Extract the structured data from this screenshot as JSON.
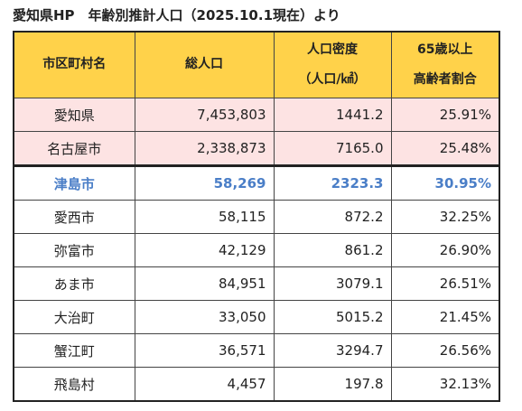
{
  "title": "愛知県HP　年齢別推計人口（2025.10.1現在）より",
  "headers": {
    "municipality": "市区町村名",
    "population": "総人口",
    "density_line1": "人口密度",
    "density_line2": "（人口/㎢）",
    "elderly_line1": "65歳以上",
    "elderly_line2": "高齢者割合"
  },
  "rows": [
    {
      "name": "愛知県",
      "population": "7,453,803",
      "density": "1441.2",
      "elderly": "25.91%"
    },
    {
      "name": "名古屋市",
      "population": "2,338,873",
      "density": "7165.0",
      "elderly": "25.48%"
    },
    {
      "name": "津島市",
      "population": "58,269",
      "density": "2323.3",
      "elderly": "30.95%"
    },
    {
      "name": "愛西市",
      "population": "58,115",
      "density": "872.2",
      "elderly": "32.25%"
    },
    {
      "name": "弥富市",
      "population": "42,129",
      "density": "861.2",
      "elderly": "26.90%"
    },
    {
      "name": "あま市",
      "population": "84,951",
      "density": "3079.1",
      "elderly": "26.51%"
    },
    {
      "name": "大治町",
      "population": "33,050",
      "density": "5015.2",
      "elderly": "21.45%"
    },
    {
      "name": "蟹江町",
      "population": "36,571",
      "density": "3294.7",
      "elderly": "26.56%"
    },
    {
      "name": "飛島村",
      "population": "4,457",
      "density": "197.8",
      "elderly": "32.13%"
    }
  ],
  "colors": {
    "header_bg": "#ffd24a",
    "pink_row_bg": "#fde3e3",
    "highlight_text": "#4a7ec7"
  }
}
